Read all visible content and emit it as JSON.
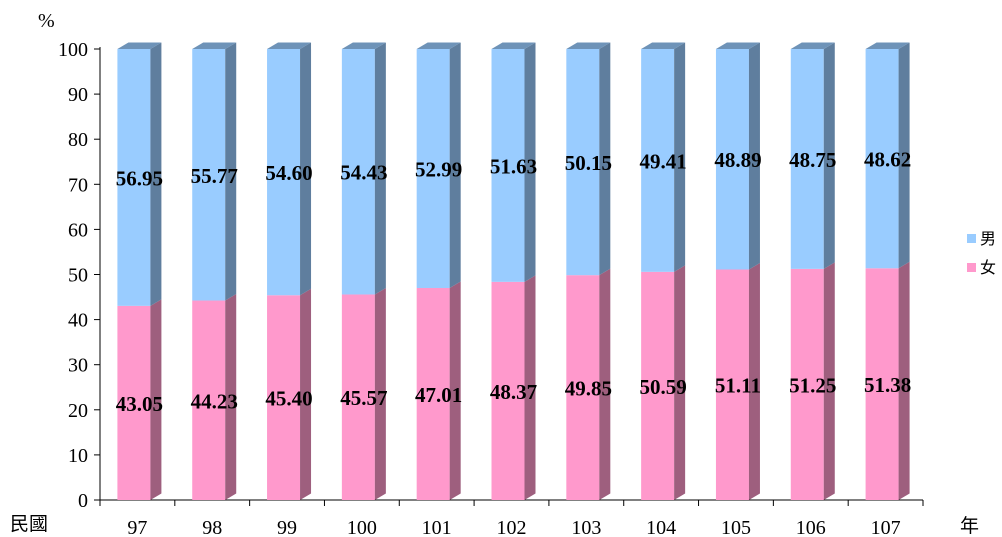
{
  "chart_data": {
    "type": "bar",
    "stacked": true,
    "percent": true,
    "y_unit": "%",
    "x_prefix": "民國",
    "x_suffix": "年",
    "categories": [
      "97",
      "98",
      "99",
      "100",
      "101",
      "102",
      "103",
      "104",
      "105",
      "106",
      "107"
    ],
    "series": [
      {
        "name": "女",
        "color": "#ff99cc",
        "values": [
          43.05,
          44.23,
          45.4,
          45.57,
          47.01,
          48.37,
          49.85,
          50.59,
          51.11,
          51.25,
          51.38
        ],
        "labels": [
          "43.05",
          "44.23",
          "45.40",
          "45.57",
          "47.01",
          "48.37",
          "49.85",
          "50.59",
          "51.11",
          "51.25",
          "51.38"
        ]
      },
      {
        "name": "男",
        "color": "#99ccff",
        "values": [
          56.95,
          55.77,
          54.6,
          54.43,
          52.99,
          51.63,
          50.15,
          49.41,
          48.89,
          48.75,
          48.62
        ],
        "labels": [
          "56.95",
          "55.77",
          "54.60",
          "54.43",
          "52.99",
          "51.63",
          "50.15",
          "49.41",
          "48.89",
          "48.75",
          "48.62"
        ]
      }
    ],
    "ylim": [
      0,
      100
    ],
    "yticks": [
      0,
      10,
      20,
      30,
      40,
      50,
      60,
      70,
      80,
      90,
      100
    ],
    "legend": {
      "position": "right",
      "order": [
        "男",
        "女"
      ]
    },
    "grid": false
  }
}
